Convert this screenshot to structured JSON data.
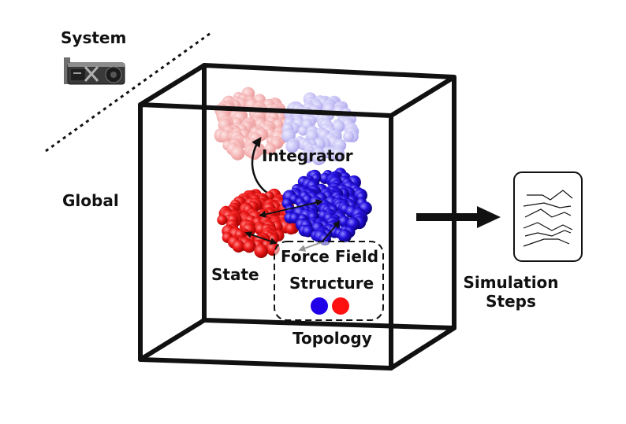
{
  "labels": {
    "system": "System",
    "global": "Global",
    "integrator": "Integrator",
    "state": "State",
    "force_field": "Force Field",
    "structure": "Structure",
    "topology": "Topology",
    "simulation_line1": "Simulation",
    "simulation_line2": "Steps"
  },
  "colors": {
    "red_molecule": "#ee1111",
    "blue_molecule": "#1a00d6",
    "faded_red": "#f4b4b4",
    "faded_blue": "#c6c2f2",
    "box_stroke": "#111111"
  },
  "icons": [
    "gpu-card-icon",
    "trajectory-document-icon",
    "right-arrow-icon"
  ]
}
